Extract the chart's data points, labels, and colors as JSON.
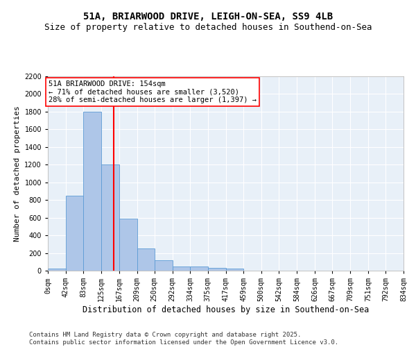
{
  "title1": "51A, BRIARWOOD DRIVE, LEIGH-ON-SEA, SS9 4LB",
  "title2": "Size of property relative to detached houses in Southend-on-Sea",
  "xlabel": "Distribution of detached houses by size in Southend-on-Sea",
  "ylabel": "Number of detached properties",
  "bin_labels": [
    "0sqm",
    "42sqm",
    "83sqm",
    "125sqm",
    "167sqm",
    "209sqm",
    "250sqm",
    "292sqm",
    "334sqm",
    "375sqm",
    "417sqm",
    "459sqm",
    "500sqm",
    "542sqm",
    "584sqm",
    "626sqm",
    "667sqm",
    "709sqm",
    "751sqm",
    "792sqm",
    "834sqm"
  ],
  "bin_edges": [
    0,
    42,
    83,
    125,
    167,
    209,
    250,
    292,
    334,
    375,
    417,
    459,
    500,
    542,
    584,
    626,
    667,
    709,
    751,
    792,
    834
  ],
  "bar_heights": [
    25,
    850,
    1800,
    1200,
    590,
    255,
    120,
    45,
    45,
    30,
    20,
    0,
    0,
    0,
    0,
    0,
    0,
    0,
    0,
    0
  ],
  "bar_color": "#aec6e8",
  "bar_edge_color": "#5b9bd5",
  "vline_x": 154,
  "vline_color": "red",
  "annotation_text": "51A BRIARWOOD DRIVE: 154sqm\n← 71% of detached houses are smaller (3,520)\n28% of semi-detached houses are larger (1,397) →",
  "annotation_box_color": "white",
  "annotation_box_edge_color": "red",
  "ylim": [
    0,
    2200
  ],
  "yticks": [
    0,
    200,
    400,
    600,
    800,
    1000,
    1200,
    1400,
    1600,
    1800,
    2000,
    2200
  ],
  "background_color": "#e8f0f8",
  "grid_color": "white",
  "footer": "Contains HM Land Registry data © Crown copyright and database right 2025.\nContains public sector information licensed under the Open Government Licence v3.0.",
  "title1_fontsize": 10,
  "title2_fontsize": 9,
  "xlabel_fontsize": 8.5,
  "ylabel_fontsize": 8,
  "tick_fontsize": 7,
  "annotation_fontsize": 7.5,
  "footer_fontsize": 6.5
}
